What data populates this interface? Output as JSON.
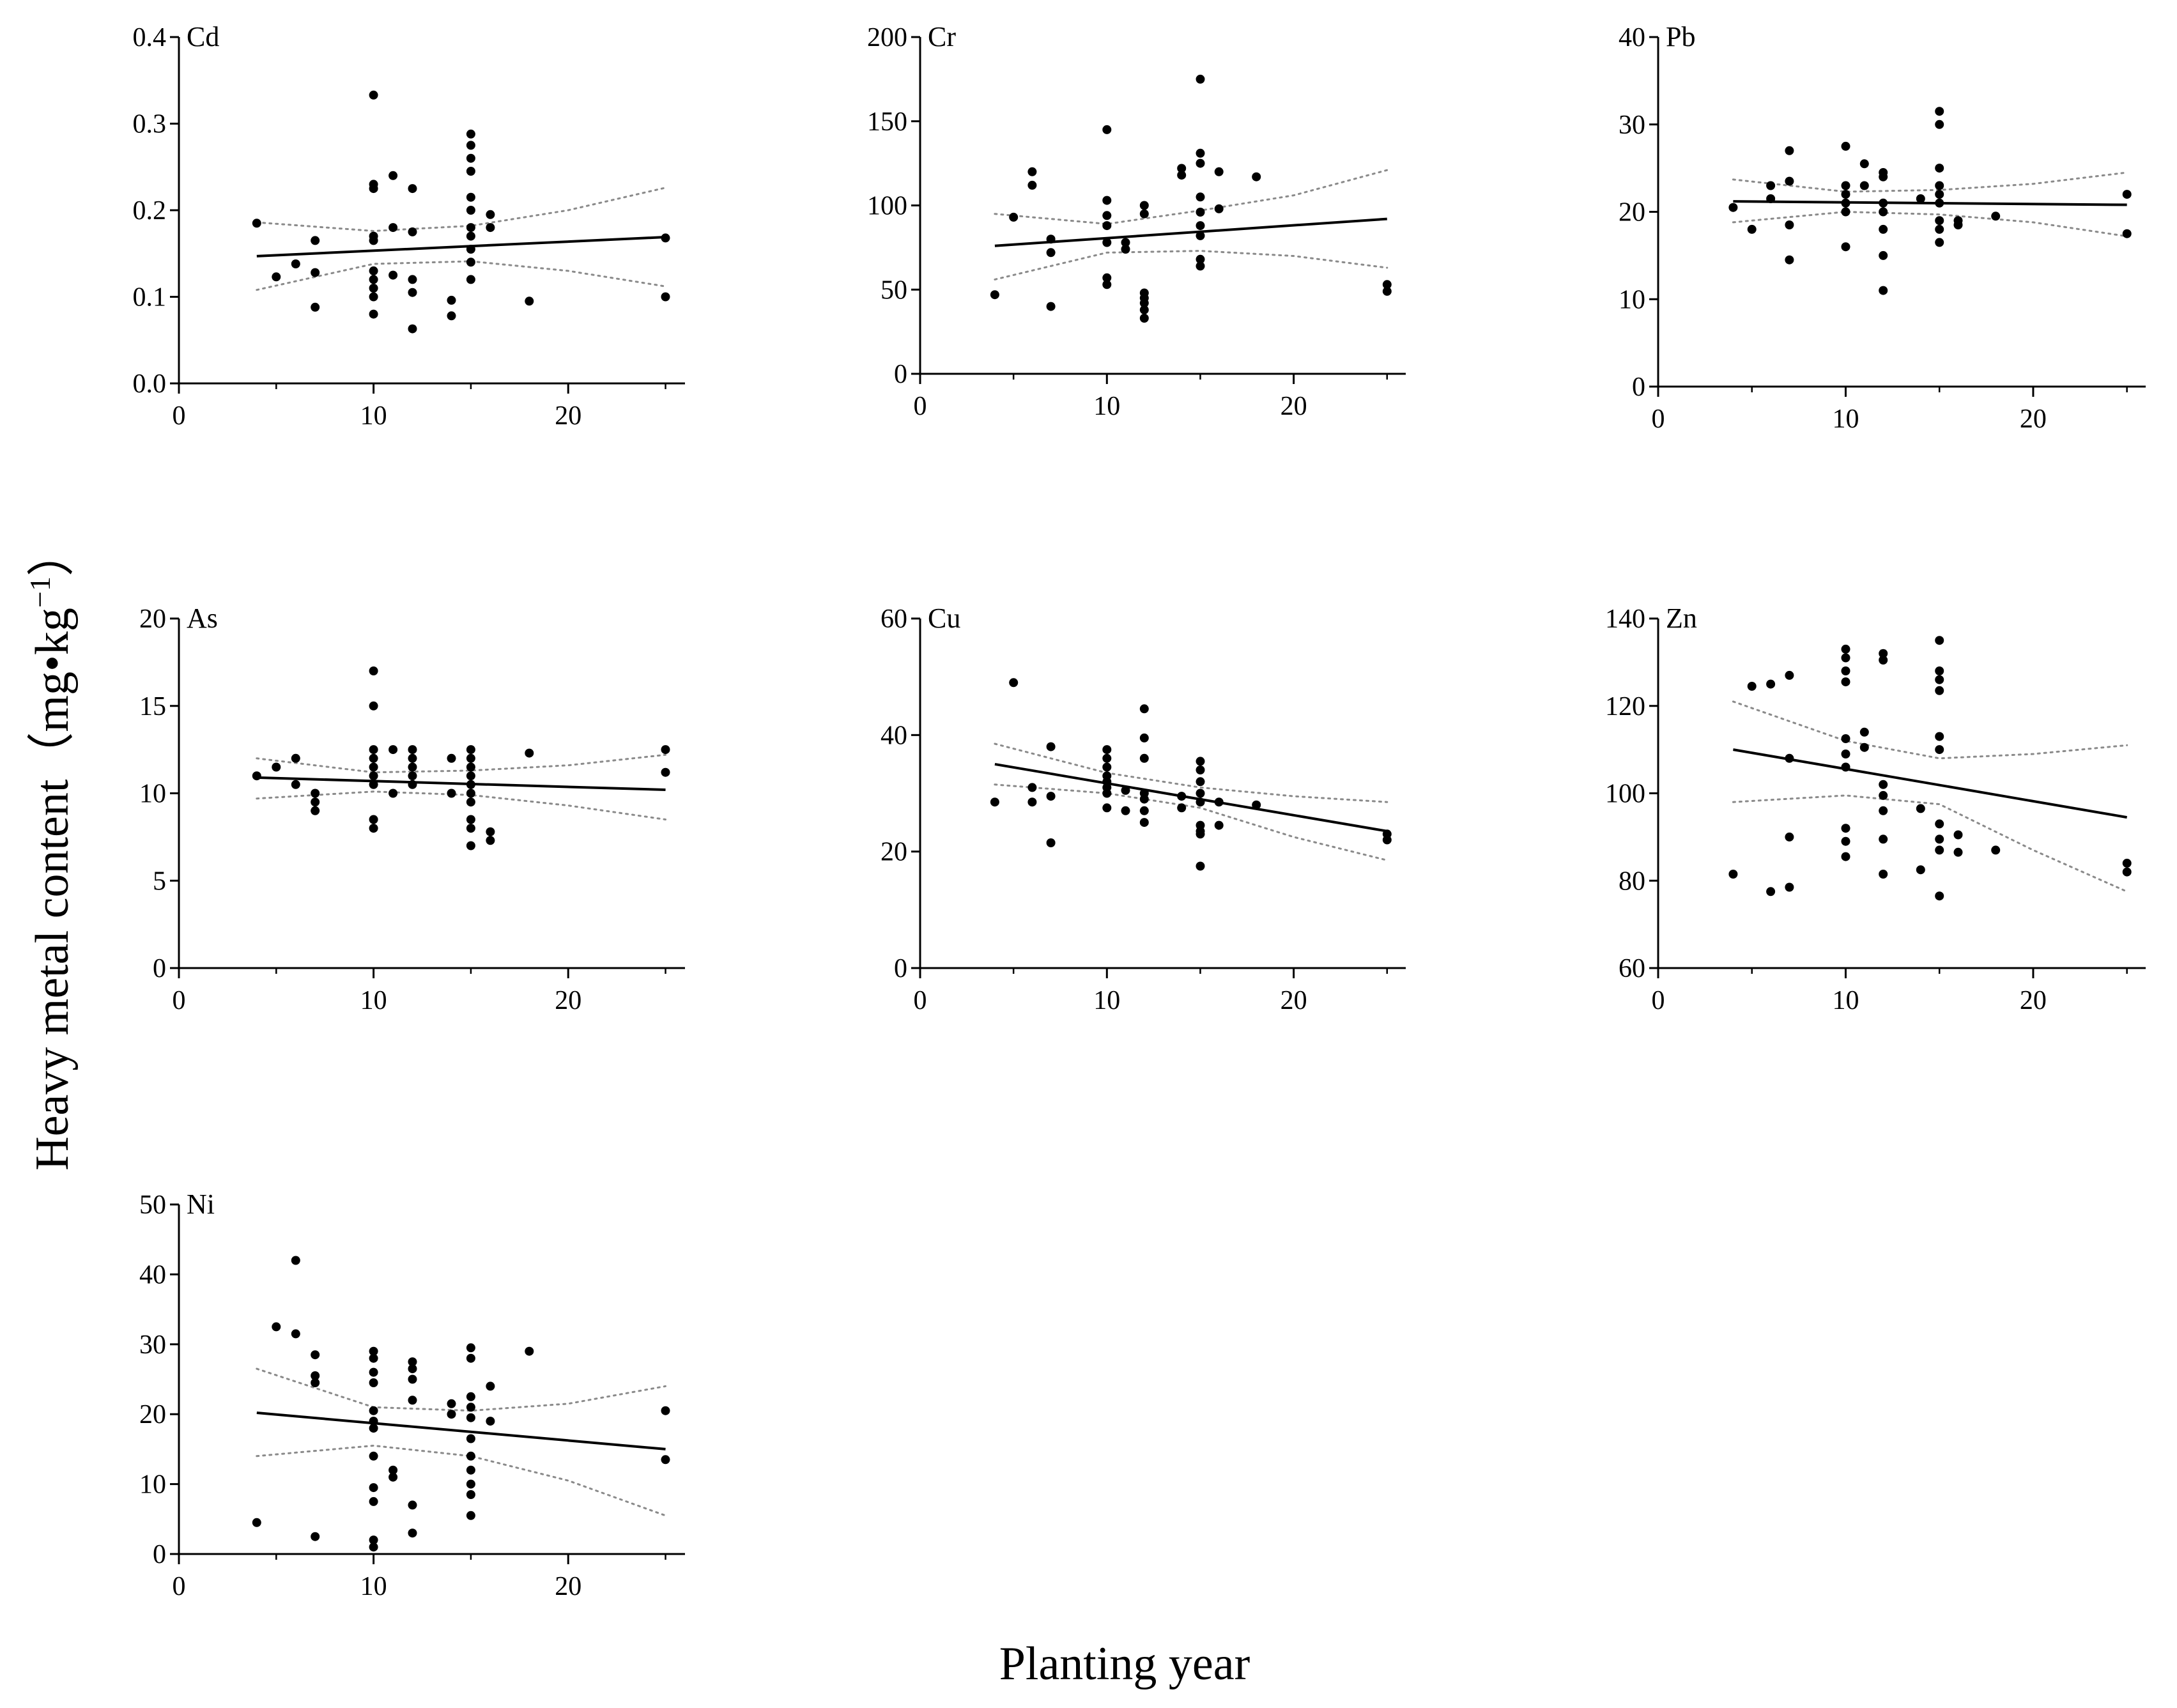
{
  "figure": {
    "x_axis_title": "Planting year",
    "y_axis_title_main": "Heavy metal content（mg•kg",
    "y_axis_title_sup": "−1",
    "y_axis_title_close": "）"
  },
  "chart_data": [
    {
      "type": "scatter",
      "title": "Cd",
      "xlim": [
        0,
        26
      ],
      "xticks": [
        0,
        10,
        20
      ],
      "ylim": [
        0,
        0.4
      ],
      "yticks": [
        "0.0",
        "0.1",
        "0.2",
        "0.3",
        "0.4"
      ],
      "x": [
        4,
        5,
        6,
        7,
        7,
        7,
        10,
        10,
        10,
        10,
        10,
        10,
        10,
        10,
        10,
        10,
        11,
        11,
        11,
        12,
        12,
        12,
        12,
        12,
        14,
        14,
        15,
        15,
        15,
        15,
        15,
        15,
        15,
        15,
        15,
        15,
        15,
        16,
        16,
        18,
        25,
        25
      ],
      "y": [
        0.185,
        0.123,
        0.138,
        0.165,
        0.128,
        0.088,
        0.333,
        0.23,
        0.225,
        0.17,
        0.165,
        0.13,
        0.12,
        0.11,
        0.1,
        0.08,
        0.24,
        0.18,
        0.125,
        0.225,
        0.175,
        0.12,
        0.105,
        0.063,
        0.096,
        0.078,
        0.288,
        0.275,
        0.26,
        0.245,
        0.215,
        0.2,
        0.18,
        0.17,
        0.155,
        0.14,
        0.12,
        0.195,
        0.18,
        0.095,
        0.168,
        0.1
      ],
      "fit": {
        "x": [
          4,
          25
        ],
        "y": [
          0.147,
          0.169
        ]
      },
      "ci_upper": [
        [
          4,
          0.186
        ],
        [
          10,
          0.176
        ],
        [
          15,
          0.182
        ],
        [
          20,
          0.2
        ],
        [
          25,
          0.226
        ]
      ],
      "ci_lower": [
        [
          4,
          0.108
        ],
        [
          10,
          0.138
        ],
        [
          15,
          0.141
        ],
        [
          20,
          0.13
        ],
        [
          25,
          0.112
        ]
      ]
    },
    {
      "type": "scatter",
      "title": "Cr",
      "xlim": [
        0,
        26
      ],
      "xticks": [
        0,
        10,
        20
      ],
      "ylim": [
        0,
        200
      ],
      "yticks": [
        "0",
        "50",
        "100",
        "150",
        "200"
      ],
      "x": [
        4,
        5,
        6,
        6,
        7,
        7,
        7,
        10,
        10,
        10,
        10,
        10,
        10,
        10,
        11,
        11,
        12,
        12,
        12,
        12,
        12,
        12,
        12,
        14,
        14,
        15,
        15,
        15,
        15,
        15,
        15,
        15,
        15,
        15,
        16,
        16,
        18,
        25,
        25
      ],
      "y": [
        47,
        93,
        120,
        112,
        80,
        72,
        40,
        145,
        103,
        94,
        88,
        78,
        57,
        53,
        78,
        74,
        100,
        95,
        48,
        45,
        42,
        38,
        33,
        122,
        118,
        175,
        131,
        125,
        105,
        96,
        88,
        82,
        68,
        64,
        120,
        98,
        117,
        53,
        49
      ],
      "fit": {
        "x": [
          4,
          25
        ],
        "y": [
          76,
          92
        ]
      },
      "ci_upper": [
        [
          4,
          95
        ],
        [
          10,
          89
        ],
        [
          15,
          97
        ],
        [
          20,
          106
        ],
        [
          25,
          121
        ]
      ],
      "ci_lower": [
        [
          4,
          56
        ],
        [
          10,
          72
        ],
        [
          15,
          73
        ],
        [
          20,
          70
        ],
        [
          25,
          63
        ]
      ]
    },
    {
      "type": "scatter",
      "title": "Pb",
      "xlim": [
        0,
        26
      ],
      "xticks": [
        0,
        10,
        20
      ],
      "ylim": [
        0,
        40
      ],
      "yticks": [
        "0",
        "10",
        "20",
        "30",
        "40"
      ],
      "x": [
        4,
        5,
        6,
        6,
        7,
        7,
        7,
        7,
        10,
        10,
        10,
        10,
        10,
        10,
        11,
        11,
        12,
        12,
        12,
        12,
        12,
        12,
        12,
        14,
        15,
        15,
        15,
        15,
        15,
        15,
        15,
        15,
        15,
        16,
        16,
        18,
        25,
        25
      ],
      "y": [
        20.5,
        18,
        23,
        21.5,
        27,
        23.5,
        18.5,
        14.5,
        27.5,
        23,
        22,
        21,
        20,
        16,
        25.5,
        23,
        24.5,
        24,
        21,
        20,
        18,
        15,
        11,
        21.5,
        31.5,
        30,
        25,
        23,
        22,
        21,
        19,
        18,
        16.5,
        19,
        18.5,
        19.5,
        22,
        17.5
      ],
      "fit": {
        "x": [
          4,
          25
        ],
        "y": [
          21.2,
          20.8
        ]
      },
      "ci_upper": [
        [
          4,
          23.7
        ],
        [
          10,
          22.3
        ],
        [
          15,
          22.5
        ],
        [
          20,
          23.2
        ],
        [
          25,
          24.5
        ]
      ],
      "ci_lower": [
        [
          4,
          18.8
        ],
        [
          10,
          20
        ],
        [
          15,
          19.7
        ],
        [
          20,
          18.8
        ],
        [
          25,
          17.2
        ]
      ]
    },
    {
      "type": "scatter",
      "title": "As",
      "xlim": [
        0,
        26
      ],
      "xticks": [
        0,
        10,
        20
      ],
      "ylim": [
        0,
        20
      ],
      "yticks": [
        "0",
        "5",
        "10",
        "15",
        "20"
      ],
      "x": [
        4,
        5,
        6,
        6,
        7,
        7,
        7,
        10,
        10,
        10,
        10,
        10,
        10,
        10,
        10,
        10,
        11,
        11,
        12,
        12,
        12,
        12,
        12,
        14,
        14,
        15,
        15,
        15,
        15,
        15,
        15,
        15,
        15,
        15,
        15,
        16,
        16,
        18,
        25,
        25
      ],
      "y": [
        11,
        11.5,
        12,
        10.5,
        10,
        9.5,
        9,
        17,
        15,
        12.5,
        12,
        11.5,
        11,
        10.5,
        8.5,
        8,
        12.5,
        10,
        12.5,
        12,
        11.5,
        11,
        10.5,
        12,
        10,
        12.5,
        12,
        11.5,
        11,
        10.5,
        10,
        9.5,
        8.5,
        8,
        7,
        7.8,
        7.3,
        12.3,
        12.5,
        11.2
      ],
      "fit": {
        "x": [
          4,
          25
        ],
        "y": [
          10.9,
          10.2
        ]
      },
      "ci_upper": [
        [
          4,
          12
        ],
        [
          10,
          11.2
        ],
        [
          15,
          11.3
        ],
        [
          20,
          11.6
        ],
        [
          25,
          12.2
        ]
      ],
      "ci_lower": [
        [
          4,
          9.7
        ],
        [
          10,
          10.1
        ],
        [
          15,
          9.9
        ],
        [
          20,
          9.3
        ],
        [
          25,
          8.5
        ]
      ]
    },
    {
      "type": "scatter",
      "title": "Cu",
      "xlim": [
        0,
        26
      ],
      "xticks": [
        0,
        10,
        20
      ],
      "ylim": [
        0,
        60
      ],
      "yticks": [
        "0",
        "20",
        "40",
        "60"
      ],
      "x": [
        4,
        5,
        6,
        6,
        7,
        7,
        7,
        10,
        10,
        10,
        10,
        10,
        10,
        10,
        10,
        11,
        11,
        12,
        12,
        12,
        12,
        12,
        12,
        12,
        14,
        14,
        15,
        15,
        15,
        15,
        15,
        15,
        15,
        15,
        15,
        16,
        16,
        18,
        25,
        25
      ],
      "y": [
        28.5,
        49,
        31,
        28.5,
        38,
        29.5,
        21.5,
        37.5,
        36,
        34.5,
        33,
        32,
        31,
        30,
        27.5,
        30.5,
        27,
        44.5,
        39.5,
        36,
        30,
        29,
        27,
        25,
        29.5,
        27.5,
        35.5,
        34,
        32,
        30,
        28.5,
        24.5,
        23.5,
        23,
        17.5,
        28.5,
        24.5,
        28,
        23,
        22
      ],
      "fit": {
        "x": [
          4,
          25
        ],
        "y": [
          35,
          23.5
        ]
      },
      "ci_upper": [
        [
          4,
          38.5
        ],
        [
          10,
          33.5
        ],
        [
          15,
          31
        ],
        [
          20,
          29.5
        ],
        [
          25,
          28.5
        ]
      ],
      "ci_lower": [
        [
          4,
          31.5
        ],
        [
          10,
          30
        ],
        [
          15,
          27.5
        ],
        [
          20,
          22.5
        ],
        [
          25,
          18.5
        ]
      ]
    },
    {
      "type": "scatter",
      "title": "Zn",
      "xlim": [
        0,
        26
      ],
      "xticks": [
        0,
        10,
        20
      ],
      "ylim": [
        60,
        140
      ],
      "yticks": [
        "60",
        "80",
        "100",
        "120",
        "140"
      ],
      "x": [
        4,
        5,
        6,
        6,
        7,
        7,
        7,
        7,
        10,
        10,
        10,
        10,
        10,
        10,
        10,
        10,
        10,
        10,
        11,
        11,
        12,
        12,
        12,
        12,
        12,
        12,
        12,
        14,
        14,
        15,
        15,
        15,
        15,
        15,
        15,
        15,
        15,
        15,
        15,
        16,
        16,
        18,
        25,
        25
      ],
      "y": [
        81.5,
        124.5,
        125,
        77.5,
        127,
        108,
        90,
        78.5,
        133,
        131,
        128,
        125.5,
        112.5,
        109,
        106,
        92,
        89,
        85.5,
        114,
        110.5,
        132,
        130.5,
        102,
        99.5,
        96,
        89.5,
        81.5,
        96.5,
        82.5,
        135,
        128,
        126,
        123.5,
        113,
        110,
        93,
        89.5,
        87,
        76.5,
        90.5,
        86.5,
        87,
        84,
        82
      ],
      "fit": {
        "x": [
          4,
          25
        ],
        "y": [
          110,
          94.5
        ]
      },
      "ci_upper": [
        [
          4,
          121
        ],
        [
          10,
          112
        ],
        [
          15,
          108
        ],
        [
          20,
          109
        ],
        [
          25,
          111
        ]
      ],
      "ci_lower": [
        [
          4,
          98
        ],
        [
          10,
          99.5
        ],
        [
          15,
          97.5
        ],
        [
          20,
          87
        ],
        [
          25,
          77.5
        ]
      ]
    },
    {
      "type": "scatter",
      "title": "Ni",
      "xlim": [
        0,
        26
      ],
      "xticks": [
        0,
        10,
        20
      ],
      "ylim": [
        0,
        50
      ],
      "yticks": [
        "0",
        "10",
        "20",
        "30",
        "40",
        "50"
      ],
      "x": [
        4,
        5,
        6,
        6,
        7,
        7,
        7,
        7,
        10,
        10,
        10,
        10,
        10,
        10,
        10,
        10,
        10,
        10,
        10,
        10,
        11,
        11,
        12,
        12,
        12,
        12,
        12,
        12,
        14,
        14,
        15,
        15,
        15,
        15,
        15,
        15,
        15,
        15,
        15,
        15,
        15,
        16,
        16,
        18,
        25,
        25
      ],
      "y": [
        4.5,
        32.5,
        42,
        31.5,
        28.5,
        25.5,
        24.5,
        2.5,
        29,
        28,
        26,
        24.5,
        20.5,
        19,
        18,
        14,
        9.5,
        7.5,
        2,
        1,
        12,
        11,
        27.5,
        26.5,
        25,
        22,
        7,
        3,
        21.5,
        20,
        29.5,
        28,
        22.5,
        21,
        19.5,
        16.5,
        14,
        12,
        10,
        8.5,
        5.5,
        24,
        19,
        29,
        20.5,
        13.5
      ],
      "fit": {
        "x": [
          4,
          25
        ],
        "y": [
          20.2,
          15
        ]
      },
      "ci_upper": [
        [
          4,
          26.5
        ],
        [
          10,
          21
        ],
        [
          15,
          20.5
        ],
        [
          20,
          21.5
        ],
        [
          25,
          24
        ]
      ],
      "ci_lower": [
        [
          4,
          14
        ],
        [
          10,
          15.5
        ],
        [
          15,
          14
        ],
        [
          20,
          10.5
        ],
        [
          25,
          5.5
        ]
      ]
    }
  ]
}
